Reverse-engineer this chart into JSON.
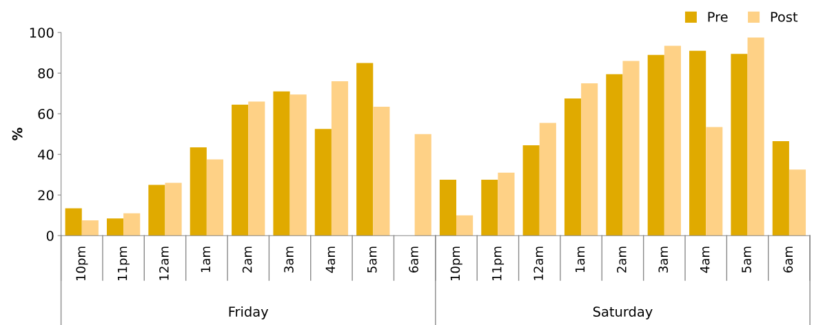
{
  "chart_data": {
    "type": "bar",
    "ylabel": "%",
    "categories": [
      "10pm",
      "11pm",
      "12am",
      "1am",
      "2am",
      "3am",
      "4am",
      "5am",
      "6am",
      "10pm",
      "11pm",
      "12am",
      "1am",
      "2am",
      "3am",
      "4am",
      "5am",
      "6am"
    ],
    "series": [
      {
        "name": "Pre",
        "color": "#e0aa00",
        "values": [
          13.5,
          8.5,
          25,
          43.5,
          64.5,
          71,
          52.5,
          85,
          null,
          27.5,
          27.5,
          44.5,
          67.5,
          79.5,
          89,
          91,
          89.5,
          46.5
        ]
      },
      {
        "name": "Post",
        "color": "#fed186",
        "values": [
          7.5,
          11,
          26,
          37.5,
          66,
          69.5,
          76,
          63.5,
          50,
          10,
          31,
          55.5,
          75,
          86,
          93.5,
          53.5,
          97.5,
          32.5
        ]
      }
    ],
    "annotations": [
      "Friday",
      "Saturday"
    ],
    "ylim": [
      0,
      100
    ],
    "yticks": [
      0,
      20,
      40,
      60,
      80,
      100
    ],
    "grid": false,
    "legend": "top right"
  }
}
